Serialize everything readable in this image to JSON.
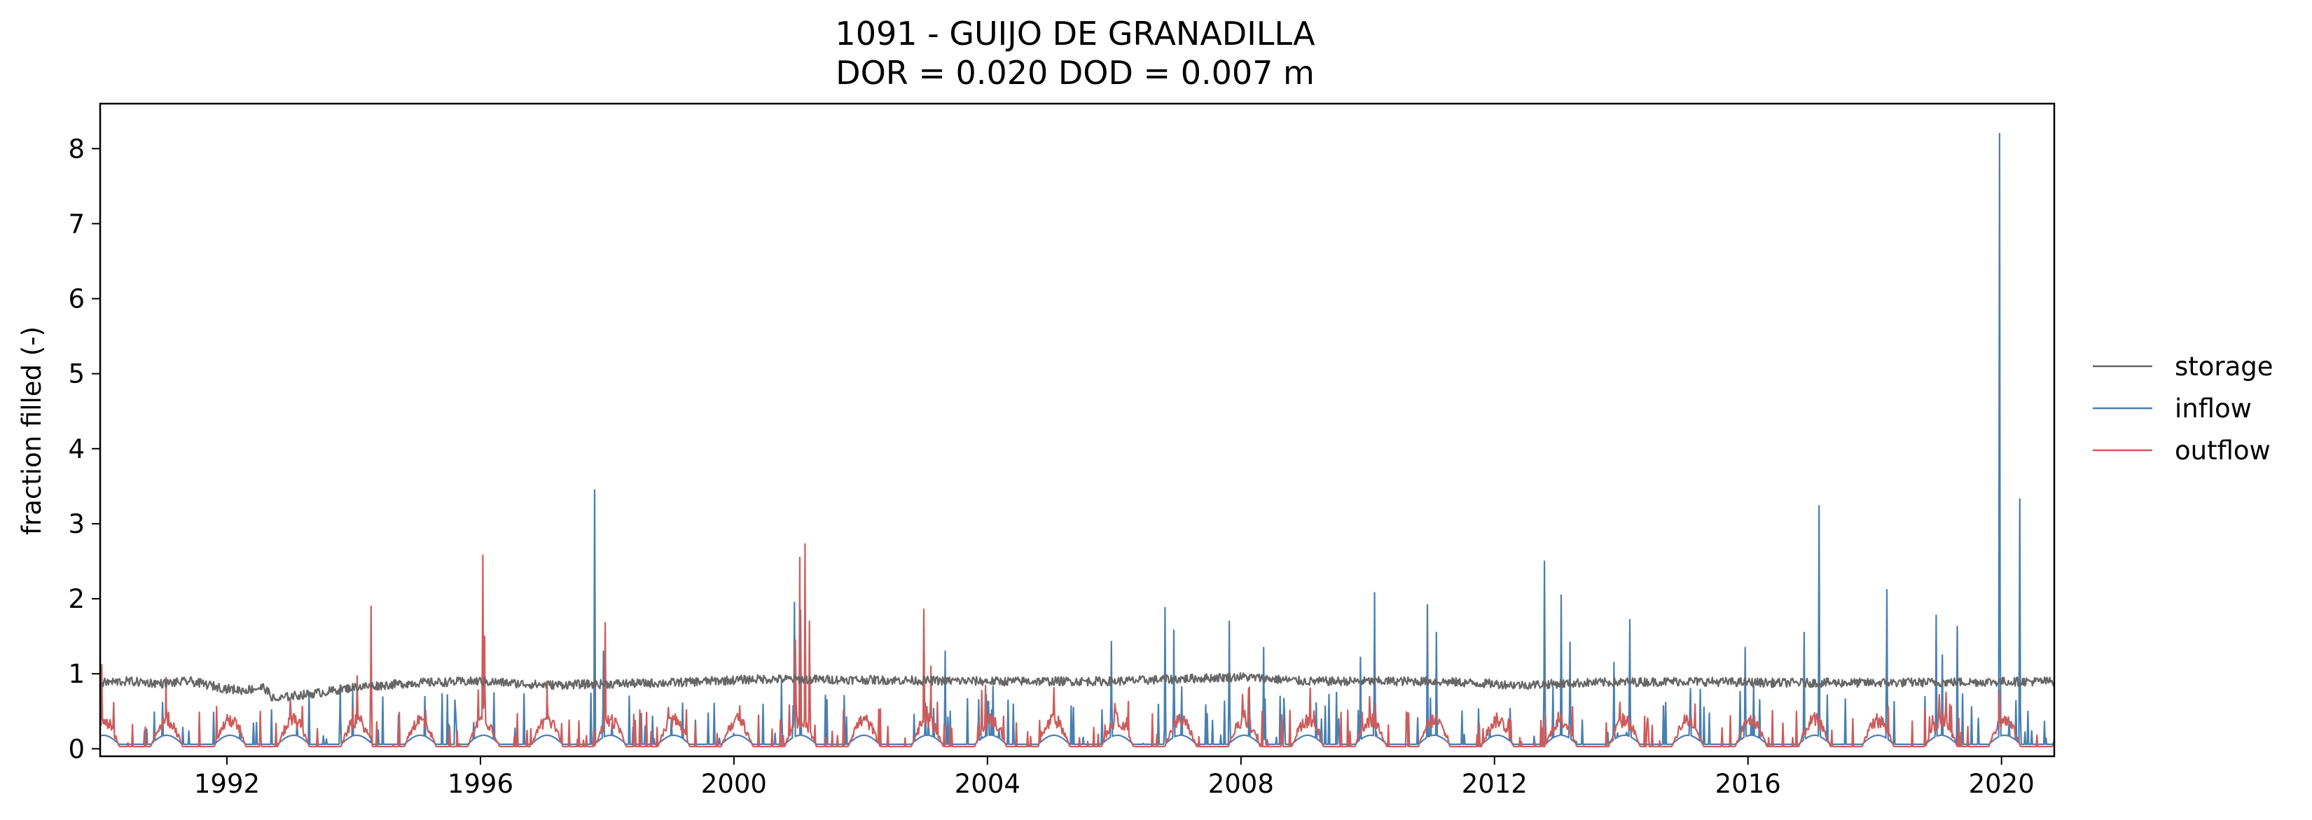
{
  "chart_data": {
    "type": "line",
    "title": "1091 - GUIJO DE GRANADILLA",
    "subtitle": "DOR = 0.020  DOD = 0.007 m",
    "xlabel": "",
    "ylabel": "fraction filled (-)",
    "xlim": [
      "1990-01-01",
      "2020-10-31"
    ],
    "ylim": [
      -0.1,
      8.6
    ],
    "xticks": [
      "1992",
      "1996",
      "2000",
      "2004",
      "2008",
      "2012",
      "2016",
      "2020"
    ],
    "yticks": [
      "0",
      "1",
      "2",
      "3",
      "4",
      "5",
      "6",
      "7",
      "8"
    ],
    "grid": false,
    "legend": {
      "position": "right",
      "entries": [
        "storage",
        "inflow",
        "outflow"
      ]
    },
    "colors": {
      "storage": "#666666",
      "inflow": "#4a7fb0",
      "outflow": "#cd5c5c"
    },
    "series": [
      {
        "name": "storage",
        "color": "#666666",
        "baseline": 0.88,
        "noise": 0.06,
        "points": [
          [
            "1990-01-01",
            0.88
          ],
          [
            "1990-06-01",
            0.9
          ],
          [
            "1991-01-01",
            0.87
          ],
          [
            "1991-06-01",
            0.9
          ],
          [
            "1992-01-01",
            0.8
          ],
          [
            "1992-04-01",
            0.78
          ],
          [
            "1992-08-01",
            0.82
          ],
          [
            "1992-10-01",
            0.65
          ],
          [
            "1993-01-01",
            0.7
          ],
          [
            "1993-08-01",
            0.76
          ],
          [
            "1994-01-01",
            0.82
          ],
          [
            "1995-01-01",
            0.88
          ],
          [
            "1996-01-01",
            0.9
          ],
          [
            "1997-01-01",
            0.85
          ],
          [
            "1999-01-01",
            0.88
          ],
          [
            "2000-06-01",
            0.93
          ],
          [
            "2002-01-01",
            0.92
          ],
          [
            "2004-01-01",
            0.9
          ],
          [
            "2006-01-01",
            0.9
          ],
          [
            "2008-01-01",
            0.96
          ],
          [
            "2009-01-01",
            0.9
          ],
          [
            "2011-01-01",
            0.9
          ],
          [
            "2012-06-01",
            0.85
          ],
          [
            "2013-06-01",
            0.88
          ],
          [
            "2015-01-01",
            0.9
          ],
          [
            "2016-06-01",
            0.88
          ],
          [
            "2018-01-01",
            0.88
          ],
          [
            "2020-10-31",
            0.9
          ]
        ]
      },
      {
        "name": "inflow",
        "color": "#4a7fb0",
        "baseline": 0.1,
        "peaks": [
          [
            "1993-10-15",
            0.85
          ],
          [
            "1997-10-20",
            3.45
          ],
          [
            "1997-12-10",
            1.3
          ],
          [
            "2000-10-01",
            0.9
          ],
          [
            "2000-12-15",
            1.95
          ],
          [
            "2001-01-20",
            1.85
          ],
          [
            "2003-05-01",
            1.3
          ],
          [
            "2005-12-15",
            1.43
          ],
          [
            "2006-10-20",
            1.88
          ],
          [
            "2006-12-10",
            1.58
          ],
          [
            "2007-10-25",
            1.7
          ],
          [
            "2008-05-10",
            1.35
          ],
          [
            "2009-11-20",
            1.22
          ],
          [
            "2010-02-10",
            2.08
          ],
          [
            "2010-12-10",
            1.92
          ],
          [
            "2011-02-01",
            1.55
          ],
          [
            "2012-10-15",
            2.5
          ],
          [
            "2013-01-20",
            2.05
          ],
          [
            "2013-03-10",
            1.42
          ],
          [
            "2013-11-20",
            1.15
          ],
          [
            "2014-02-20",
            1.72
          ],
          [
            "2015-12-15",
            1.35
          ],
          [
            "2016-11-20",
            1.55
          ],
          [
            "2017-02-15",
            3.24
          ],
          [
            "2018-03-10",
            2.12
          ],
          [
            "2018-12-20",
            1.78
          ],
          [
            "2019-01-25",
            1.25
          ],
          [
            "2019-04-20",
            1.63
          ],
          [
            "2019-12-20",
            8.2
          ],
          [
            "2020-04-15",
            3.33
          ]
        ]
      },
      {
        "name": "outflow",
        "color": "#cd5c5c",
        "baseline": 0.2,
        "peaks": [
          [
            "1990-01-10",
            1.12
          ],
          [
            "1991-01-15",
            0.95
          ],
          [
            "1994-04-10",
            1.9
          ],
          [
            "1996-01-15",
            2.58
          ],
          [
            "1996-01-25",
            1.5
          ],
          [
            "1997-01-20",
            0.9
          ],
          [
            "1997-12-20",
            1.68
          ],
          [
            "2000-12-20",
            1.45
          ],
          [
            "2001-01-15",
            2.55
          ],
          [
            "2001-02-15",
            2.73
          ],
          [
            "2001-03-10",
            1.7
          ],
          [
            "2002-12-30",
            1.86
          ],
          [
            "2003-02-10",
            1.1
          ],
          [
            "2010-02-15",
            0.6
          ]
        ]
      }
    ]
  }
}
